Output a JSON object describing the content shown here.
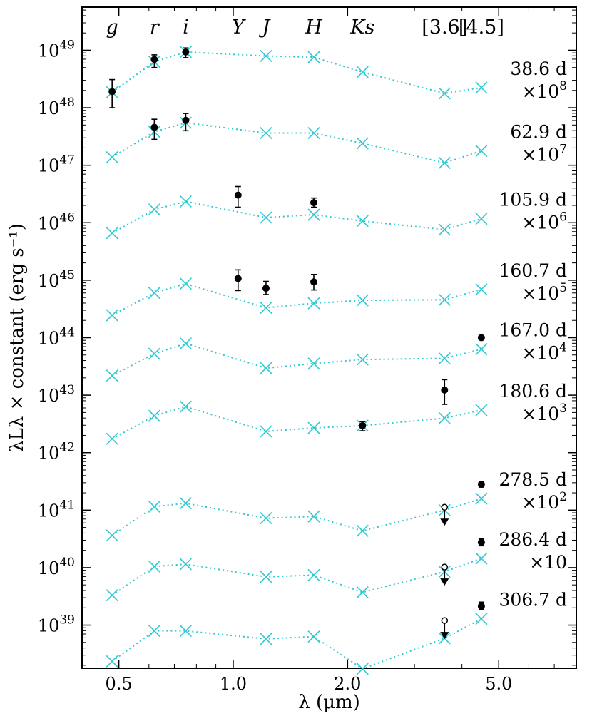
{
  "chart_data": {
    "type": "scatter",
    "xlabel": "λ (μm)",
    "ylabel": "λLλ × constant (erg s⁻¹)",
    "xscale": "log",
    "yscale": "log",
    "xlim": [
      0.4,
      8.0
    ],
    "ylim_log10": [
      38.25,
      49.75
    ],
    "xticks": [
      {
        "value": 0.5,
        "label": "0.5"
      },
      {
        "value": 1.0,
        "label": "1.0"
      },
      {
        "value": 2.0,
        "label": "2.0"
      },
      {
        "value": 5.0,
        "label": "5.0"
      }
    ],
    "yticks": [
      {
        "exp": 39,
        "base": "10",
        "sup": "39"
      },
      {
        "exp": 40,
        "base": "10",
        "sup": "40"
      },
      {
        "exp": 41,
        "base": "10",
        "sup": "41"
      },
      {
        "exp": 42,
        "base": "10",
        "sup": "42"
      },
      {
        "exp": 43,
        "base": "10",
        "sup": "43"
      },
      {
        "exp": 44,
        "base": "10",
        "sup": "44"
      },
      {
        "exp": 45,
        "base": "10",
        "sup": "45"
      },
      {
        "exp": 46,
        "base": "10",
        "sup": "46"
      },
      {
        "exp": 47,
        "base": "10",
        "sup": "47"
      },
      {
        "exp": 48,
        "base": "10",
        "sup": "48"
      },
      {
        "exp": 49,
        "base": "10",
        "sup": "49"
      }
    ],
    "bands": [
      {
        "label": "g",
        "wavelength": 0.48,
        "italic": true
      },
      {
        "label": "r",
        "wavelength": 0.62,
        "italic": true
      },
      {
        "label": "i",
        "wavelength": 0.75,
        "italic": true
      },
      {
        "label": "Y",
        "wavelength": 1.03,
        "italic": true
      },
      {
        "label": "J",
        "wavelength": 1.22,
        "italic": true
      },
      {
        "label": "H",
        "wavelength": 1.63,
        "italic": true
      },
      {
        "label": "Ks",
        "wavelength": 2.19,
        "italic": true
      },
      {
        "label": "[3.6]",
        "wavelength": 3.6,
        "italic": false
      },
      {
        "label": "[4.5]",
        "wavelength": 4.5,
        "italic": false
      }
    ],
    "model_wavelengths": [
      0.48,
      0.62,
      0.75,
      1.22,
      1.63,
      2.19,
      3.6,
      4.5
    ],
    "series": [
      {
        "name": "38.6 d",
        "scale_label": "×10",
        "scale_exp": "8",
        "model_log10": [
          48.27,
          48.8,
          48.97,
          48.9,
          48.88,
          48.62,
          48.25,
          48.35
        ],
        "obs": [
          {
            "wl": 0.48,
            "log10": 48.28,
            "err_lo": 48.0,
            "err_hi": 48.49
          },
          {
            "wl": 0.62,
            "log10": 48.84,
            "err_lo": 48.7,
            "err_hi": 48.92
          },
          {
            "wl": 0.75,
            "log10": 48.97,
            "err_lo": 48.87,
            "err_hi": 49.04
          }
        ],
        "upper_limits": []
      },
      {
        "name": "62.9 d",
        "scale_label": "×10",
        "scale_exp": "7",
        "model_log10": [
          47.14,
          47.58,
          47.74,
          47.56,
          47.56,
          47.38,
          47.04,
          47.25
        ],
        "obs": [
          {
            "wl": 0.62,
            "log10": 47.66,
            "err_lo": 47.45,
            "err_hi": 47.8
          },
          {
            "wl": 0.75,
            "log10": 47.78,
            "err_lo": 47.6,
            "err_hi": 47.9
          }
        ],
        "upper_limits": []
      },
      {
        "name": "105.9 d",
        "scale_label": "×10",
        "scale_exp": "6",
        "model_log10": [
          45.82,
          46.23,
          46.37,
          46.09,
          46.14,
          46.03,
          45.88,
          46.07
        ],
        "obs": [
          {
            "wl": 1.03,
            "log10": 46.48,
            "err_lo": 46.27,
            "err_hi": 46.63
          },
          {
            "wl": 1.63,
            "log10": 46.35,
            "err_lo": 46.27,
            "err_hi": 46.43
          }
        ],
        "upper_limits": []
      },
      {
        "name": "160.7 d",
        "scale_label": "×10",
        "scale_exp": "5",
        "model_log10": [
          44.39,
          44.78,
          44.94,
          44.52,
          44.6,
          44.65,
          44.66,
          44.84
        ],
        "obs": [
          {
            "wl": 1.03,
            "log10": 45.03,
            "err_lo": 44.82,
            "err_hi": 45.18
          },
          {
            "wl": 1.22,
            "log10": 44.86,
            "err_lo": 44.75,
            "err_hi": 44.98
          },
          {
            "wl": 1.63,
            "log10": 44.97,
            "err_lo": 44.83,
            "err_hi": 45.1
          }
        ],
        "upper_limits": []
      },
      {
        "name": "167.0 d",
        "scale_label": "×10",
        "scale_exp": "4",
        "model_log10": [
          43.34,
          43.72,
          43.9,
          43.47,
          43.55,
          43.62,
          43.64,
          43.8
        ],
        "obs": [
          {
            "wl": 4.5,
            "log10": 44.0,
            "err_lo": 43.96,
            "err_hi": 44.04
          }
        ],
        "upper_limits": []
      },
      {
        "name": "180.6 d",
        "scale_label": "×10",
        "scale_exp": "3",
        "model_log10": [
          42.24,
          42.64,
          42.8,
          42.37,
          42.43,
          42.47,
          42.6,
          42.74
        ],
        "obs": [
          {
            "wl": 2.19,
            "log10": 42.47,
            "err_lo": 42.38,
            "err_hi": 42.54
          },
          {
            "wl": 3.6,
            "log10": 43.09,
            "err_lo": 42.84,
            "err_hi": 43.27
          }
        ],
        "upper_limits": []
      },
      {
        "name": "278.5 d",
        "scale_label": "×10",
        "scale_exp": "2",
        "model_log10": [
          40.56,
          41.06,
          41.12,
          40.86,
          40.89,
          40.64,
          41.0,
          41.2
        ],
        "obs": [
          {
            "wl": 4.5,
            "log10": 41.45,
            "err_lo": 41.4,
            "err_hi": 41.5
          }
        ],
        "upper_limits": [
          {
            "wl": 3.6,
            "log10": 41.05
          }
        ]
      },
      {
        "name": "286.4 d",
        "scale_label": "×10",
        "scale_exp": "",
        "model_log10": [
          39.52,
          40.02,
          40.06,
          39.84,
          39.87,
          39.57,
          39.93,
          40.16
        ],
        "obs": [
          {
            "wl": 4.5,
            "log10": 40.44,
            "err_lo": 40.38,
            "err_hi": 40.5
          }
        ],
        "upper_limits": [
          {
            "wl": 3.6,
            "log10": 40.01
          }
        ]
      },
      {
        "name": "306.7 d",
        "scale_label": "",
        "scale_exp": "",
        "model_log10": [
          38.37,
          38.9,
          38.9,
          38.76,
          38.8,
          38.24,
          38.77,
          39.11
        ],
        "obs": [
          {
            "wl": 4.5,
            "log10": 39.33,
            "err_lo": 39.27,
            "err_hi": 39.4
          }
        ],
        "upper_limits": [
          {
            "wl": 3.6,
            "log10": 39.08
          }
        ]
      }
    ],
    "colors": {
      "model": "#2ec9d2",
      "observed": "#000000"
    }
  }
}
